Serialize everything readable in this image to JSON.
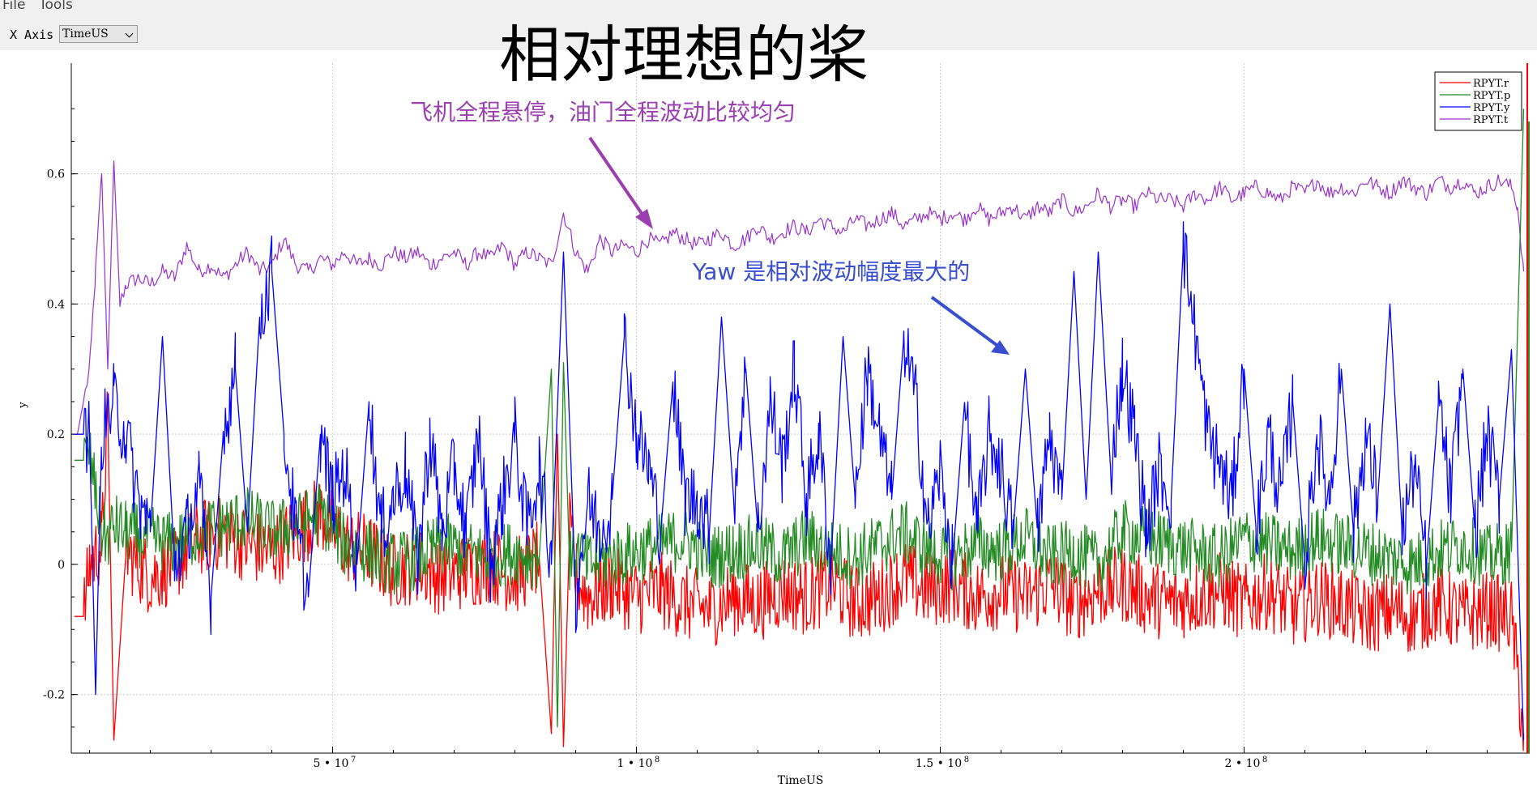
{
  "menu": {
    "file": "File",
    "tools": "Tools"
  },
  "toolbar": {
    "x_axis_label": "X Axis",
    "x_axis_value": "TimeUS"
  },
  "colors": {
    "r": "#ff0000",
    "p": "#228b22",
    "y": "#0000ff",
    "t": "#9932cc",
    "anno_purple": "#9b3fb0",
    "anno_blue": "#3a4fd0"
  },
  "chart_data": {
    "type": "line",
    "title": "相对理想的桨",
    "xlabel": "TimeUS",
    "ylabel": "y",
    "xlim": [
      7000000,
      247000000
    ],
    "ylim": [
      -0.29,
      0.77
    ],
    "grid": true,
    "legend_position": "top-right",
    "xticks": [
      {
        "value": 50000000,
        "label": "5 • 10",
        "exp": "7"
      },
      {
        "value": 100000000,
        "label": "1 • 10",
        "exp": "8"
      },
      {
        "value": 150000000,
        "label": "1.5 • 10",
        "exp": "8"
      },
      {
        "value": 200000000,
        "label": "2 • 10",
        "exp": "8"
      }
    ],
    "yticks": [
      {
        "value": -0.2,
        "label": "-0.2"
      },
      {
        "value": 0,
        "label": "0"
      },
      {
        "value": 0.2,
        "label": "0.2"
      },
      {
        "value": 0.4,
        "label": "0.4"
      },
      {
        "value": 0.6,
        "label": "0.6"
      }
    ],
    "series": [
      {
        "key": "r",
        "name": "RPYT.r",
        "color": "#ff0000",
        "x": [
          7.5,
          9,
          10,
          12,
          13,
          14,
          16,
          20,
          24,
          28,
          32,
          36,
          40,
          44,
          48,
          52,
          56,
          60,
          64,
          68,
          72,
          76,
          80,
          84,
          86,
          87,
          88,
          89,
          90,
          92,
          96,
          100,
          104,
          108,
          112,
          116,
          120,
          124,
          128,
          132,
          136,
          140,
          144,
          148,
          152,
          156,
          160,
          164,
          168,
          172,
          176,
          180,
          184,
          188,
          192,
          196,
          200,
          204,
          208,
          212,
          216,
          220,
          224,
          228,
          232,
          236,
          240,
          244,
          246
        ],
        "y": [
          -0.08,
          -0.08,
          0.0,
          0.03,
          0.23,
          -0.27,
          0.02,
          -0.02,
          0.0,
          0.04,
          0.05,
          0.03,
          0.02,
          0.05,
          0.08,
          0.03,
          0.02,
          -0.01,
          0.0,
          -0.02,
          -0.01,
          0.0,
          -0.02,
          0.01,
          -0.26,
          0.2,
          -0.28,
          0.05,
          -0.02,
          -0.05,
          -0.03,
          -0.05,
          -0.04,
          -0.06,
          -0.07,
          -0.05,
          -0.06,
          -0.04,
          -0.05,
          -0.03,
          -0.06,
          -0.05,
          -0.02,
          -0.04,
          -0.03,
          -0.05,
          -0.04,
          -0.05,
          -0.03,
          -0.06,
          -0.04,
          -0.03,
          -0.05,
          -0.06,
          -0.05,
          -0.04,
          -0.06,
          -0.04,
          -0.07,
          -0.05,
          -0.06,
          -0.08,
          -0.07,
          -0.08,
          -0.06,
          -0.08,
          -0.07,
          -0.08,
          -0.26
        ]
      },
      {
        "key": "p",
        "name": "RPYT.p",
        "color": "#228b22",
        "x": [
          7.5,
          9,
          10,
          12,
          13,
          14,
          16,
          20,
          24,
          28,
          32,
          36,
          40,
          44,
          48,
          52,
          56,
          60,
          64,
          68,
          72,
          76,
          80,
          84,
          86,
          87,
          88,
          89,
          90,
          92,
          96,
          100,
          104,
          108,
          112,
          116,
          120,
          124,
          128,
          132,
          136,
          140,
          144,
          148,
          152,
          156,
          160,
          164,
          168,
          172,
          176,
          180,
          184,
          188,
          192,
          196,
          200,
          204,
          208,
          212,
          216,
          220,
          224,
          228,
          232,
          236,
          240,
          244,
          246
        ],
        "y": [
          0.16,
          0.16,
          0.17,
          0.05,
          0.04,
          0.06,
          0.05,
          0.04,
          0.03,
          0.05,
          0.06,
          0.07,
          0.05,
          0.06,
          0.08,
          0.03,
          0.02,
          0.0,
          0.01,
          0.03,
          0.02,
          0.01,
          0.02,
          0.01,
          0.3,
          -0.25,
          0.31,
          0.0,
          0.02,
          0.0,
          0.01,
          0.02,
          0.03,
          0.04,
          0.01,
          0.02,
          0.03,
          0.01,
          0.04,
          0.02,
          0.01,
          0.03,
          0.05,
          0.02,
          0.01,
          0.03,
          0.02,
          0.04,
          0.01,
          0.02,
          0.0,
          0.05,
          0.04,
          0.03,
          0.02,
          0.01,
          0.04,
          0.03,
          0.02,
          0.04,
          0.03,
          0.02,
          0.01,
          0.0,
          0.02,
          0.03,
          0.01,
          0.02,
          0.7
        ]
      },
      {
        "key": "y",
        "name": "RPYT.y",
        "color": "#0000ff",
        "x": [
          7.5,
          9,
          10,
          11,
          12,
          14,
          16,
          18,
          20,
          22,
          24,
          26,
          28,
          30,
          32,
          34,
          36,
          38,
          40,
          42,
          44,
          46,
          48,
          50,
          52,
          54,
          56,
          58,
          60,
          62,
          64,
          66,
          68,
          70,
          72,
          74,
          76,
          78,
          80,
          82,
          84,
          86,
          88,
          90,
          92,
          94,
          96,
          98,
          100,
          102,
          104,
          106,
          108,
          110,
          112,
          114,
          116,
          118,
          120,
          122,
          124,
          126,
          128,
          130,
          132,
          134,
          136,
          138,
          140,
          142,
          144,
          146,
          148,
          150,
          152,
          154,
          156,
          158,
          160,
          162,
          164,
          166,
          168,
          170,
          172,
          174,
          176,
          178,
          180,
          182,
          184,
          186,
          188,
          190,
          192,
          194,
          196,
          198,
          200,
          202,
          204,
          206,
          208,
          210,
          212,
          214,
          216,
          218,
          220,
          222,
          224,
          226,
          228,
          230,
          232,
          234,
          236,
          238,
          240,
          242,
          244,
          246
        ],
        "y": [
          0.2,
          0.2,
          0.2,
          -0.2,
          0.2,
          0.25,
          0.2,
          0.1,
          0.05,
          0.35,
          0.0,
          0.05,
          0.12,
          -0.05,
          0.2,
          0.3,
          0.05,
          0.38,
          0.45,
          0.2,
          0.05,
          -0.05,
          0.2,
          0.1,
          0.15,
          0.0,
          0.25,
          0.05,
          0.1,
          0.15,
          0.0,
          0.2,
          0.05,
          0.15,
          0.05,
          0.2,
          0.0,
          0.1,
          0.2,
          0.05,
          0.15,
          0.0,
          0.48,
          -0.05,
          0.1,
          0.05,
          0.1,
          0.35,
          0.2,
          0.15,
          0.05,
          0.28,
          0.1,
          0.1,
          0.05,
          0.38,
          0.1,
          0.3,
          0.05,
          0.25,
          0.15,
          0.3,
          0.1,
          0.2,
          0.0,
          0.35,
          0.1,
          0.3,
          0.2,
          0.1,
          0.35,
          0.25,
          0.05,
          0.15,
          0.0,
          0.25,
          0.05,
          0.2,
          0.15,
          0.05,
          0.3,
          0.05,
          0.2,
          0.1,
          0.45,
          0.1,
          0.48,
          0.15,
          0.3,
          0.2,
          0.05,
          0.15,
          0.1,
          0.49,
          0.35,
          0.2,
          0.15,
          0.1,
          0.3,
          0.05,
          0.2,
          0.1,
          0.25,
          0.0,
          0.2,
          0.1,
          0.3,
          0.05,
          0.2,
          0.1,
          0.4,
          0.05,
          0.15,
          0.0,
          0.25,
          0.1,
          0.3,
          0.05,
          0.2,
          0.1,
          0.33,
          -0.27
        ]
      },
      {
        "key": "t",
        "name": "RPYT.t",
        "color": "#9932cc",
        "x": [
          7.5,
          8,
          9,
          10,
          11,
          12,
          13,
          14,
          15,
          16,
          18,
          20,
          22,
          24,
          26,
          28,
          30,
          32,
          34,
          36,
          38,
          40,
          42,
          44,
          46,
          48,
          50,
          52,
          54,
          56,
          58,
          60,
          62,
          64,
          66,
          68,
          70,
          72,
          74,
          76,
          78,
          80,
          82,
          84,
          86,
          88,
          90,
          92,
          94,
          96,
          98,
          100,
          102,
          104,
          106,
          108,
          110,
          112,
          114,
          116,
          118,
          120,
          122,
          124,
          126,
          128,
          130,
          132,
          134,
          136,
          138,
          140,
          142,
          144,
          146,
          148,
          150,
          152,
          154,
          156,
          158,
          160,
          162,
          164,
          166,
          168,
          170,
          172,
          174,
          176,
          178,
          180,
          182,
          184,
          186,
          188,
          190,
          192,
          194,
          196,
          198,
          200,
          202,
          204,
          206,
          208,
          210,
          212,
          214,
          216,
          218,
          220,
          222,
          224,
          226,
          228,
          230,
          232,
          234,
          236,
          238,
          240,
          242,
          244,
          245,
          246
        ],
        "y": [
          0.2,
          0.2,
          0.25,
          0.3,
          0.45,
          0.6,
          0.3,
          0.62,
          0.4,
          0.43,
          0.44,
          0.43,
          0.45,
          0.44,
          0.49,
          0.45,
          0.46,
          0.44,
          0.46,
          0.48,
          0.45,
          0.46,
          0.5,
          0.46,
          0.45,
          0.47,
          0.46,
          0.48,
          0.46,
          0.47,
          0.46,
          0.48,
          0.47,
          0.48,
          0.46,
          0.47,
          0.48,
          0.46,
          0.48,
          0.47,
          0.49,
          0.46,
          0.48,
          0.47,
          0.46,
          0.54,
          0.48,
          0.45,
          0.5,
          0.48,
          0.49,
          0.48,
          0.5,
          0.49,
          0.51,
          0.5,
          0.49,
          0.5,
          0.51,
          0.49,
          0.5,
          0.52,
          0.5,
          0.51,
          0.52,
          0.51,
          0.53,
          0.52,
          0.51,
          0.53,
          0.52,
          0.53,
          0.54,
          0.52,
          0.53,
          0.54,
          0.53,
          0.54,
          0.53,
          0.55,
          0.53,
          0.54,
          0.55,
          0.53,
          0.55,
          0.54,
          0.56,
          0.54,
          0.55,
          0.57,
          0.55,
          0.56,
          0.55,
          0.57,
          0.56,
          0.56,
          0.55,
          0.57,
          0.56,
          0.58,
          0.56,
          0.57,
          0.58,
          0.57,
          0.56,
          0.58,
          0.57,
          0.59,
          0.57,
          0.58,
          0.57,
          0.59,
          0.58,
          0.57,
          0.59,
          0.58,
          0.57,
          0.59,
          0.58,
          0.59,
          0.57,
          0.58,
          0.59,
          0.58,
          0.55,
          0.45
        ]
      }
    ],
    "annotations": [
      {
        "text": "飞机全程悬停，油门全程波动比较均匀",
        "color": "#9b3fb0"
      },
      {
        "text": "Yaw 是相对波动幅度最大的",
        "color": "#3a4fd0"
      }
    ]
  }
}
